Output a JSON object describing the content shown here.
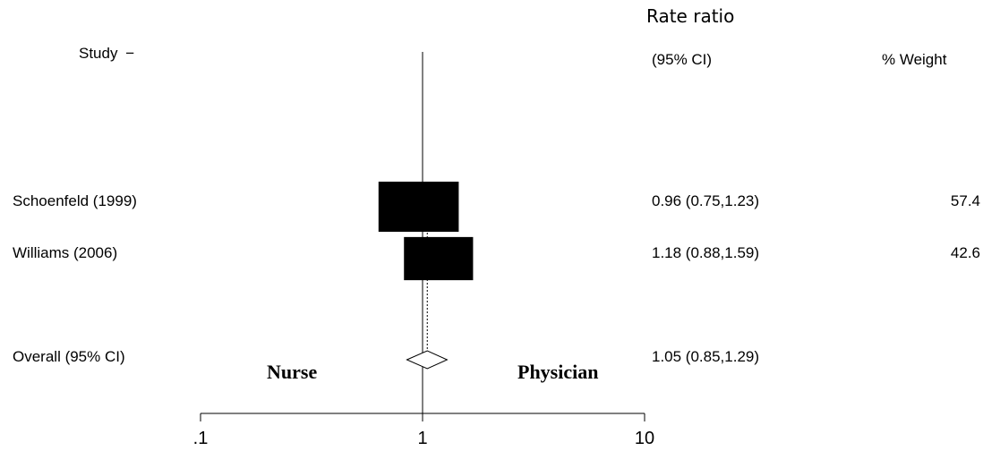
{
  "header": {
    "study_label": "Study",
    "rate_ratio_label": "Rate ratio",
    "ci_label": "(95% CI)",
    "weight_label": "% Weight"
  },
  "annotations": {
    "left": "Nurse",
    "right": "Physician"
  },
  "chart_data": {
    "type": "forest",
    "xscale": "log",
    "xlim": [
      0.1,
      10
    ],
    "xticks": [
      0.1,
      1,
      10
    ],
    "xtick_labels": [
      ".1",
      "1",
      "10"
    ],
    "reference_line": 1,
    "studies": [
      {
        "label": "Schoenfeld (1999)",
        "estimate": 0.96,
        "ci_low": 0.75,
        "ci_high": 1.23,
        "ci_text": "0.96 (0.75,1.23)",
        "weight": 57.4,
        "weight_text": "57.4"
      },
      {
        "label": "Williams (2006)",
        "estimate": 1.18,
        "ci_low": 0.88,
        "ci_high": 1.59,
        "ci_text": "1.18 (0.88,1.59)",
        "weight": 42.6,
        "weight_text": "42.6"
      }
    ],
    "overall": {
      "label": "Overall (95% CI)",
      "estimate": 1.05,
      "ci_low": 0.85,
      "ci_high": 1.29,
      "ci_text": "1.05 (0.85,1.29)"
    }
  }
}
